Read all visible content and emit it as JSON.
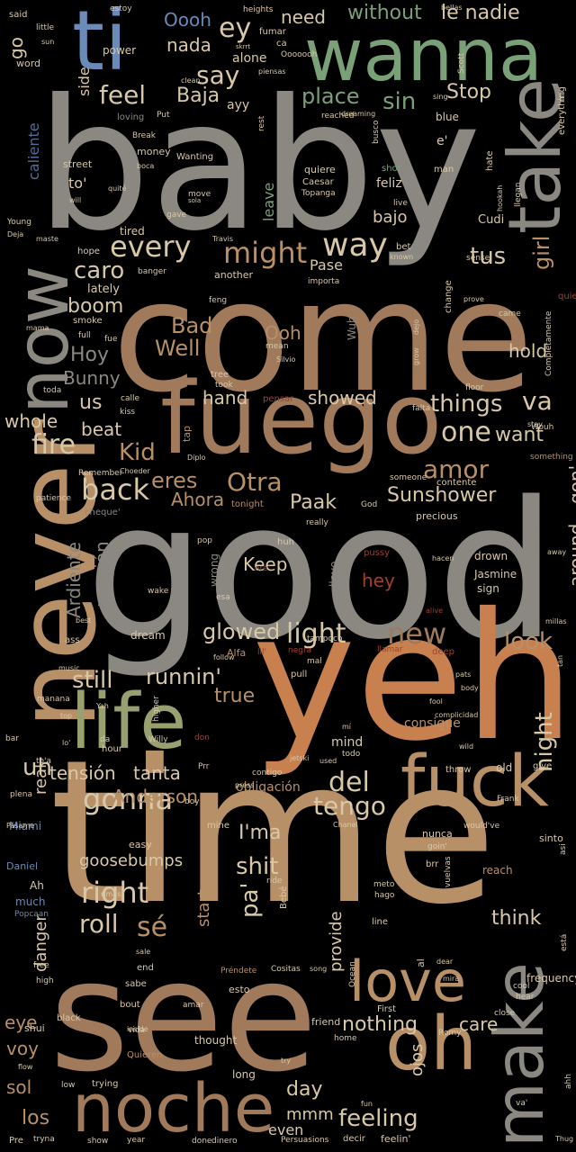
{
  "colors": {
    "background": "#000000",
    "grey": "#8a8880",
    "brown": "#a07a5a",
    "tan": "#b89068",
    "orange": "#c8804f",
    "sand": "#c8a078",
    "blue": "#6a8ab8",
    "green": "#7aa078",
    "olive": "#98a070",
    "light": "#d8c8a8",
    "red": "#a04030"
  },
  "words": [
    {
      "t": "baby",
      "c": "grey"
    },
    {
      "t": "come",
      "c": "brown"
    },
    {
      "t": "good",
      "c": "grey"
    },
    {
      "t": "time",
      "c": "tan"
    },
    {
      "t": "yeh",
      "c": "orange"
    },
    {
      "t": "wanna",
      "c": "green"
    },
    {
      "t": "fuego",
      "c": "brown"
    },
    {
      "t": "never",
      "c": "tan"
    },
    {
      "t": "now",
      "c": "grey"
    },
    {
      "t": "see",
      "c": "brown"
    },
    {
      "t": "life",
      "c": "olive"
    },
    {
      "t": "fuck",
      "c": "tan"
    },
    {
      "t": "ti",
      "c": "blue"
    },
    {
      "t": "take",
      "c": "grey"
    },
    {
      "t": "noche",
      "c": "brown"
    },
    {
      "t": "oh",
      "c": "tan"
    },
    {
      "t": "make",
      "c": "grey"
    },
    {
      "t": "love",
      "c": "tan"
    },
    {
      "t": "way",
      "c": "light"
    },
    {
      "t": "every",
      "c": "light"
    },
    {
      "t": "might",
      "c": "tan"
    },
    {
      "t": "tus",
      "c": "light"
    },
    {
      "t": "girl",
      "c": "tan"
    },
    {
      "t": "caro",
      "c": "light"
    },
    {
      "t": "fire",
      "c": "light"
    },
    {
      "t": "back",
      "c": "light"
    },
    {
      "t": "one",
      "c": "light"
    },
    {
      "t": "want",
      "c": "light"
    },
    {
      "t": "amor",
      "c": "tan"
    },
    {
      "t": "things",
      "c": "light"
    },
    {
      "t": "va",
      "c": "light"
    },
    {
      "t": "eres",
      "c": "tan"
    },
    {
      "t": "Otra",
      "c": "tan"
    },
    {
      "t": "Kid",
      "c": "tan"
    },
    {
      "t": "Sunshower",
      "c": "light"
    },
    {
      "t": "Paak",
      "c": "light"
    },
    {
      "t": "Ahora",
      "c": "tan"
    },
    {
      "t": "gonna",
      "c": "light"
    },
    {
      "t": "del",
      "c": "light"
    },
    {
      "t": "tengo",
      "c": "light"
    },
    {
      "t": "right",
      "c": "light"
    },
    {
      "t": "roll",
      "c": "light"
    },
    {
      "t": "sé",
      "c": "tan"
    },
    {
      "t": "pa'",
      "c": "light"
    },
    {
      "t": "shit",
      "c": "light"
    },
    {
      "t": "light",
      "c": "light"
    },
    {
      "t": "new",
      "c": "brown"
    },
    {
      "t": "look",
      "c": "tan"
    },
    {
      "t": "glowed",
      "c": "light"
    },
    {
      "t": "still",
      "c": "light"
    },
    {
      "t": "runnin'",
      "c": "light"
    },
    {
      "t": "true",
      "c": "tan"
    },
    {
      "t": "night",
      "c": "light"
    },
    {
      "t": "uh",
      "c": "light"
    },
    {
      "t": "tensión",
      "c": "light"
    },
    {
      "t": "tanta",
      "c": "light"
    },
    {
      "t": "Anderson",
      "c": "tan"
    },
    {
      "t": "I'ma",
      "c": "light"
    },
    {
      "t": "hey",
      "c": "red"
    },
    {
      "t": "Keep",
      "c": "light"
    },
    {
      "t": "presión",
      "c": "grey"
    },
    {
      "t": "Ardiente",
      "c": "grey"
    },
    {
      "t": "around",
      "c": "light"
    },
    {
      "t": "gon'",
      "c": "light"
    },
    {
      "t": "whole",
      "c": "light"
    },
    {
      "t": "beat",
      "c": "light"
    },
    {
      "t": "us",
      "c": "light"
    },
    {
      "t": "hand",
      "c": "light"
    },
    {
      "t": "showed",
      "c": "light"
    },
    {
      "t": "Bad",
      "c": "tan"
    },
    {
      "t": "Well",
      "c": "tan"
    },
    {
      "t": "Ooh",
      "c": "tan"
    },
    {
      "t": "Wuh",
      "c": "grey"
    },
    {
      "t": "hold",
      "c": "light"
    },
    {
      "t": "Hoy",
      "c": "grey"
    },
    {
      "t": "Bunny",
      "c": "grey"
    },
    {
      "t": "boom",
      "c": "light"
    },
    {
      "t": "feel",
      "c": "light"
    },
    {
      "t": "Baja",
      "c": "light"
    },
    {
      "t": "say",
      "c": "light"
    },
    {
      "t": "place",
      "c": "green"
    },
    {
      "t": "sin",
      "c": "green"
    },
    {
      "t": "Stop",
      "c": "light"
    },
    {
      "t": "nada",
      "c": "light"
    },
    {
      "t": "ey",
      "c": "light"
    },
    {
      "t": "Oooh",
      "c": "blue"
    },
    {
      "t": "need",
      "c": "light"
    },
    {
      "t": "without",
      "c": "green"
    },
    {
      "t": "le nadie",
      "c": "light"
    },
    {
      "t": "go",
      "c": "light"
    },
    {
      "t": "side",
      "c": "light"
    },
    {
      "t": "alone",
      "c": "light"
    },
    {
      "t": "ayy",
      "c": "light"
    },
    {
      "t": "to'",
      "c": "light"
    },
    {
      "t": "leave",
      "c": "green"
    },
    {
      "t": "bajo",
      "c": "light"
    },
    {
      "t": "feliz",
      "c": "light"
    },
    {
      "t": "Pase",
      "c": "light"
    },
    {
      "t": "caliente",
      "c": "blue"
    },
    {
      "t": "e'",
      "c": "light"
    },
    {
      "t": "danger",
      "c": "light"
    },
    {
      "t": "real",
      "c": "light"
    },
    {
      "t": "eye",
      "c": "tan"
    },
    {
      "t": "voy",
      "c": "tan"
    },
    {
      "t": "sol",
      "c": "tan"
    },
    {
      "t": "los",
      "c": "tan"
    },
    {
      "t": "day",
      "c": "light"
    },
    {
      "t": "mmm",
      "c": "light"
    },
    {
      "t": "even",
      "c": "light"
    },
    {
      "t": "feeling",
      "c": "light"
    },
    {
      "t": "nothing",
      "c": "light"
    },
    {
      "t": "care",
      "c": "light"
    },
    {
      "t": "ojos",
      "c": "light"
    },
    {
      "t": "provide",
      "c": "light"
    },
    {
      "t": "think",
      "c": "light"
    },
    {
      "t": "start",
      "c": "tan"
    },
    {
      "t": "goosebumps",
      "c": "light"
    },
    {
      "t": "consigue",
      "c": "tan"
    },
    {
      "t": "obligación",
      "c": "tan"
    },
    {
      "t": "mind",
      "c": "light"
    },
    {
      "t": "cheque'",
      "c": "grey"
    },
    {
      "t": "dream",
      "c": "light"
    },
    {
      "t": "llevo",
      "c": "grey"
    },
    {
      "t": "wrong",
      "c": "grey"
    },
    {
      "t": "Alfa",
      "c": "tan"
    },
    {
      "t": "Jasmine",
      "c": "light"
    },
    {
      "t": "drown",
      "c": "light"
    },
    {
      "t": "sign",
      "c": "light"
    },
    {
      "t": "precious",
      "c": "light"
    },
    {
      "t": "frequency",
      "c": "light"
    },
    {
      "t": "Miami",
      "c": "blue"
    },
    {
      "t": "Daniel",
      "c": "blue"
    },
    {
      "t": "much",
      "c": "blue"
    },
    {
      "t": "Popcaan",
      "c": "blue"
    },
    {
      "t": "Ah",
      "c": "light"
    },
    {
      "t": "said",
      "c": "light"
    },
    {
      "t": "little",
      "c": "light"
    },
    {
      "t": "sun",
      "c": "light"
    },
    {
      "t": "word",
      "c": "light"
    },
    {
      "t": "power",
      "c": "light"
    },
    {
      "t": "estoy",
      "c": "light"
    },
    {
      "t": "heights",
      "c": "light"
    },
    {
      "t": "fumar",
      "c": "light"
    },
    {
      "t": "bellas",
      "c": "light"
    },
    {
      "t": "ca",
      "c": "light"
    },
    {
      "t": "blue",
      "c": "light"
    },
    {
      "t": "quiere",
      "c": "light"
    },
    {
      "t": "Caesar",
      "c": "light"
    },
    {
      "t": "Topanga",
      "c": "light"
    },
    {
      "t": "Cudi",
      "c": "light"
    },
    {
      "t": "tired",
      "c": "light"
    },
    {
      "t": "lately",
      "c": "light"
    },
    {
      "t": "smoke",
      "c": "light"
    },
    {
      "t": "full",
      "c": "light"
    },
    {
      "t": "street",
      "c": "light"
    },
    {
      "t": "money",
      "c": "light"
    },
    {
      "t": "Wanting",
      "c": "light"
    },
    {
      "t": "loving",
      "c": "grey"
    },
    {
      "t": "hope",
      "c": "light"
    },
    {
      "t": "another",
      "c": "light"
    },
    {
      "t": "banger",
      "c": "light"
    },
    {
      "t": "man",
      "c": "light"
    },
    {
      "t": "bet",
      "c": "light"
    },
    {
      "t": "everything",
      "c": "light"
    },
    {
      "t": "quiero",
      "c": "red"
    },
    {
      "t": "came",
      "c": "light"
    },
    {
      "t": "change",
      "c": "light"
    },
    {
      "t": "Completamente",
      "c": "light"
    },
    {
      "t": "floor",
      "c": "light"
    },
    {
      "t": "falta",
      "c": "light"
    },
    {
      "t": "stay",
      "c": "light"
    },
    {
      "t": "contente",
      "c": "light"
    },
    {
      "t": "someone",
      "c": "light"
    },
    {
      "t": "really",
      "c": "light"
    },
    {
      "t": "tonight",
      "c": "tan"
    },
    {
      "t": "God",
      "c": "light"
    },
    {
      "t": "pop",
      "c": "light"
    },
    {
      "t": "huh",
      "c": "light"
    },
    {
      "t": "pussy",
      "c": "red"
    },
    {
      "t": "ere'",
      "c": "red"
    },
    {
      "t": "wake",
      "c": "light"
    },
    {
      "t": "esa",
      "c": "light"
    },
    {
      "t": "tampoco",
      "c": "light"
    },
    {
      "t": "alive",
      "c": "red"
    },
    {
      "t": "best",
      "c": "light"
    },
    {
      "t": "ass",
      "c": "light"
    },
    {
      "t": "music",
      "c": "light"
    },
    {
      "t": "mal",
      "c": "light"
    },
    {
      "t": "pull",
      "c": "light"
    },
    {
      "t": "deep",
      "c": "red"
    },
    {
      "t": "llamar",
      "c": "red"
    },
    {
      "t": "negra",
      "c": "red"
    },
    {
      "t": "follow",
      "c": "light"
    },
    {
      "t": "Yah",
      "c": "light"
    },
    {
      "t": "higher",
      "c": "light"
    },
    {
      "t": "Willy",
      "c": "light"
    },
    {
      "t": "hour",
      "c": "light"
    },
    {
      "t": "lo'",
      "c": "light"
    },
    {
      "t": "Prr",
      "c": "light"
    },
    {
      "t": "contigo",
      "c": "light"
    },
    {
      "t": "jetski",
      "c": "light"
    },
    {
      "t": "used",
      "c": "light"
    },
    {
      "t": "todo",
      "c": "light"
    },
    {
      "t": "mí",
      "c": "light"
    },
    {
      "t": "throw",
      "c": "light"
    },
    {
      "t": "old",
      "c": "light"
    },
    {
      "t": "give",
      "c": "light"
    },
    {
      "t": "Frank",
      "c": "light"
    },
    {
      "t": "boy",
      "c": "light"
    },
    {
      "t": "press",
      "c": "light"
    },
    {
      "t": "Chanel",
      "c": "light"
    },
    {
      "t": "would've",
      "c": "light"
    },
    {
      "t": "nunca",
      "c": "light"
    },
    {
      "t": "goin'",
      "c": "light"
    },
    {
      "t": "sinto",
      "c": "light"
    },
    {
      "t": "brr",
      "c": "light"
    },
    {
      "t": "reach",
      "c": "tan"
    },
    {
      "t": "mine",
      "c": "light"
    },
    {
      "t": "easy",
      "c": "light"
    },
    {
      "t": "ride",
      "c": "light"
    },
    {
      "t": "Bebé",
      "c": "light"
    },
    {
      "t": "rimas",
      "c": "light"
    },
    {
      "t": "meto",
      "c": "light"
    },
    {
      "t": "hago",
      "c": "light"
    },
    {
      "t": "vuelvas",
      "c": "light"
    },
    {
      "t": "line",
      "c": "light"
    },
    {
      "t": "está",
      "c": "light"
    },
    {
      "t": "end",
      "c": "light"
    },
    {
      "t": "sabe",
      "c": "light"
    },
    {
      "t": "bout",
      "c": "light"
    },
    {
      "t": "amar",
      "c": "light"
    },
    {
      "t": "esto",
      "c": "light"
    },
    {
      "t": "Préndete",
      "c": "tan"
    },
    {
      "t": "Cositas",
      "c": "light"
    },
    {
      "t": "song",
      "c": "light"
    },
    {
      "t": "thought",
      "c": "light"
    },
    {
      "t": "friend",
      "c": "light"
    },
    {
      "t": "First",
      "c": "light"
    },
    {
      "t": "Romy",
      "c": "light"
    },
    {
      "t": "home",
      "c": "light"
    },
    {
      "t": "long",
      "c": "light"
    },
    {
      "t": "trying",
      "c": "light"
    },
    {
      "t": "Quieren",
      "c": "tan"
    },
    {
      "t": "vida",
      "c": "light"
    },
    {
      "t": "black",
      "c": "light"
    },
    {
      "t": "shui",
      "c": "light"
    },
    {
      "t": "free",
      "c": "light"
    },
    {
      "t": "high",
      "c": "light"
    },
    {
      "t": "low",
      "c": "light"
    },
    {
      "t": "show",
      "c": "light"
    },
    {
      "t": "year",
      "c": "light"
    },
    {
      "t": "done",
      "c": "light"
    },
    {
      "t": "dinero",
      "c": "light"
    },
    {
      "t": "Persuasions",
      "c": "light"
    },
    {
      "t": "decir",
      "c": "light"
    },
    {
      "t": "feelin'",
      "c": "light"
    },
    {
      "t": "Thug",
      "c": "light"
    },
    {
      "t": "ahh",
      "c": "light"
    },
    {
      "t": "va'",
      "c": "light"
    },
    {
      "t": "Pre",
      "c": "light"
    },
    {
      "t": "tryna",
      "c": "light"
    },
    {
      "t": "Ocean",
      "c": "light"
    },
    {
      "t": "al",
      "c": "light"
    },
    {
      "t": "close",
      "c": "light"
    },
    {
      "t": "hear",
      "c": "light"
    },
    {
      "t": "cool",
      "c": "light"
    },
    {
      "t": "toda",
      "c": "light"
    },
    {
      "t": "calle",
      "c": "light"
    },
    {
      "t": "kiss",
      "c": "light"
    },
    {
      "t": "tree",
      "c": "light"
    },
    {
      "t": "took",
      "c": "light"
    },
    {
      "t": "mean",
      "c": "light"
    },
    {
      "t": "Silvio",
      "c": "light"
    },
    {
      "t": "pensar",
      "c": "red"
    },
    {
      "t": "tap",
      "c": "tan"
    },
    {
      "t": "Diplo",
      "c": "light"
    },
    {
      "t": "Remember",
      "c": "light"
    },
    {
      "t": "Choeder",
      "c": "light"
    },
    {
      "t": "Wouh",
      "c": "light"
    },
    {
      "t": "something",
      "c": "tan"
    },
    {
      "t": "patience",
      "c": "light"
    },
    {
      "t": "away",
      "c": "light"
    },
    {
      "t": "hacen",
      "c": "light"
    },
    {
      "t": "millas",
      "c": "light"
    },
    {
      "t": "tan",
      "c": "light"
    },
    {
      "t": "manana",
      "c": "light"
    },
    {
      "t": "top",
      "c": "light"
    },
    {
      "t": "bar",
      "c": "light"
    },
    {
      "t": "to'a",
      "c": "light"
    },
    {
      "t": "plena",
      "c": "light"
    },
    {
      "t": "da",
      "c": "light"
    },
    {
      "t": "don",
      "c": "red"
    },
    {
      "t": "lil'",
      "c": "red"
    },
    {
      "t": "mama",
      "c": "light"
    },
    {
      "t": "fue",
      "c": "light"
    },
    {
      "t": "feng",
      "c": "light"
    },
    {
      "t": "importa",
      "c": "light"
    },
    {
      "t": "prove",
      "c": "light"
    },
    {
      "t": "sense",
      "c": "light"
    },
    {
      "t": "llegan",
      "c": "light"
    },
    {
      "t": "hookah",
      "c": "light"
    },
    {
      "t": "hate",
      "c": "light"
    },
    {
      "t": "live",
      "c": "light"
    },
    {
      "t": "shot",
      "c": "green"
    },
    {
      "t": "busco",
      "c": "light"
    },
    {
      "t": "reached",
      "c": "light"
    },
    {
      "t": "dreaming",
      "c": "light"
    },
    {
      "t": "rest",
      "c": "light"
    },
    {
      "t": "Put",
      "c": "light"
    },
    {
      "t": "clean",
      "c": "light"
    },
    {
      "t": "skrrt",
      "c": "light"
    },
    {
      "t": "Ooooooh",
      "c": "light"
    },
    {
      "t": "piensas",
      "c": "light"
    },
    {
      "t": "Scott",
      "c": "light"
    },
    {
      "t": "mi",
      "c": "light"
    },
    {
      "t": "sing",
      "c": "light"
    },
    {
      "t": "Break",
      "c": "light"
    },
    {
      "t": "boca",
      "c": "light"
    },
    {
      "t": "quité",
      "c": "light"
    },
    {
      "t": "will",
      "c": "light"
    },
    {
      "t": "move",
      "c": "light"
    },
    {
      "t": "sola",
      "c": "light"
    },
    {
      "t": "Travis",
      "c": "light"
    },
    {
      "t": "gave",
      "c": "light"
    },
    {
      "t": "Young",
      "c": "light"
    },
    {
      "t": "Deja",
      "c": "light"
    },
    {
      "t": "maste",
      "c": "light"
    },
    {
      "t": "known",
      "c": "light"
    },
    {
      "t": "grow",
      "c": "light"
    },
    {
      "t": "dejo",
      "c": "light"
    },
    {
      "t": "Pásame",
      "c": "light"
    },
    {
      "t": "asi",
      "c": "light"
    },
    {
      "t": "wild",
      "c": "light"
    },
    {
      "t": "body",
      "c": "light"
    },
    {
      "t": "fool",
      "c": "light"
    },
    {
      "t": "pats",
      "c": "light"
    },
    {
      "t": "complicidad",
      "c": "light"
    },
    {
      "t": "mira",
      "c": "light"
    },
    {
      "t": "dear",
      "c": "light"
    },
    {
      "t": "sale",
      "c": "light"
    },
    {
      "t": "inside",
      "c": "light"
    },
    {
      "t": "flow",
      "c": "light"
    },
    {
      "t": "fun",
      "c": "light"
    },
    {
      "t": "try",
      "c": "light"
    }
  ]
}
